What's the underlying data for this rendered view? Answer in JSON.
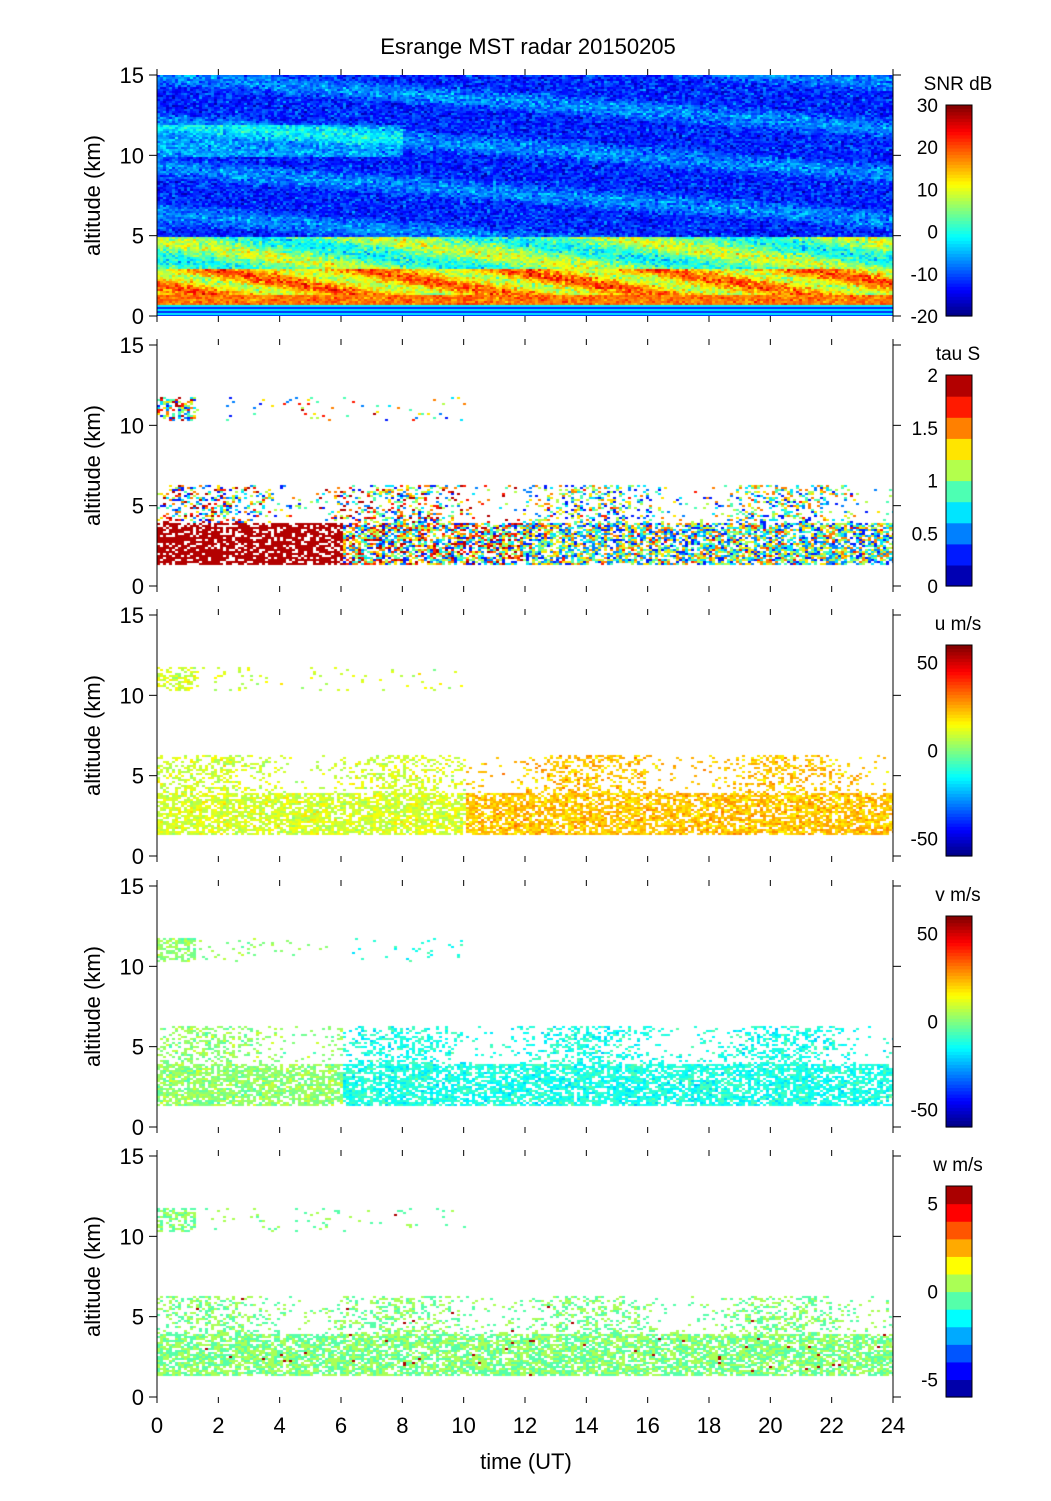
{
  "chart_data": {
    "type": "heatmap",
    "title": "Esrange MST radar 20150205",
    "xlabel": "time (UT)",
    "xlim": [
      0,
      24
    ],
    "xticks": [
      "0",
      "2",
      "4",
      "6",
      "8",
      "10",
      "12",
      "14",
      "16",
      "18",
      "20",
      "22",
      "24"
    ],
    "panels": [
      {
        "name": "snr",
        "ylabel": "altitude (km)",
        "ylim": [
          0,
          15
        ],
        "yticks": [
          "0",
          "5",
          "10",
          "15"
        ],
        "colorbar_label": "SNR dB",
        "clim": [
          -20,
          30
        ],
        "cticks": [
          "30",
          "20",
          "10",
          "0",
          "-10",
          "-20"
        ],
        "discrete_levels": 0
      },
      {
        "name": "tau",
        "ylabel": "altitude (km)",
        "ylim": [
          0,
          15
        ],
        "yticks": [
          "0",
          "5",
          "10",
          "15"
        ],
        "colorbar_label": "tau S",
        "clim": [
          0,
          2
        ],
        "cticks": [
          "2",
          "1.5",
          "1",
          "0.5",
          "0"
        ],
        "discrete_levels": 10
      },
      {
        "name": "u",
        "ylabel": "altitude (km)",
        "ylim": [
          0,
          15
        ],
        "yticks": [
          "0",
          "5",
          "10",
          "15"
        ],
        "colorbar_label": "u m/s",
        "clim": [
          -60,
          60
        ],
        "cticks": [
          "50",
          "0",
          "-50"
        ],
        "discrete_levels": 0
      },
      {
        "name": "v",
        "ylabel": "altitude (km)",
        "ylim": [
          0,
          15
        ],
        "yticks": [
          "0",
          "5",
          "10",
          "15"
        ],
        "colorbar_label": "v m/s",
        "clim": [
          -60,
          60
        ],
        "cticks": [
          "50",
          "0",
          "-50"
        ],
        "discrete_levels": 0
      },
      {
        "name": "w",
        "ylabel": "altitude (km)",
        "ylim": [
          0,
          15
        ],
        "yticks": [
          "0",
          "5",
          "10",
          "15"
        ],
        "colorbar_label": "w m/s",
        "clim": [
          -6,
          6
        ],
        "cticks": [
          "5",
          "0",
          "-5"
        ],
        "discrete_levels": 12
      }
    ]
  }
}
